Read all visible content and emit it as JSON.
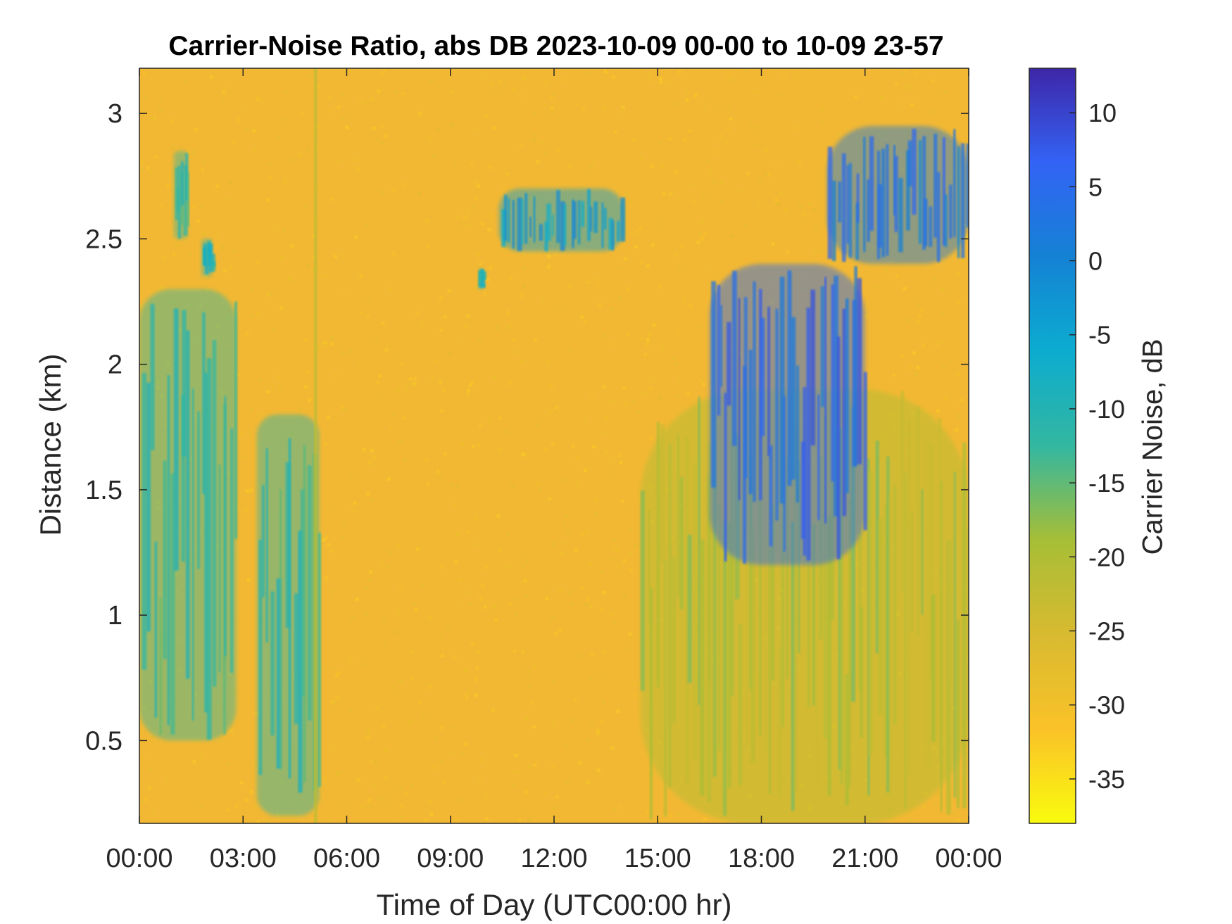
{
  "chart_data": {
    "type": "heatmap",
    "title": "Carrier-Noise Ratio, abs DB 2023-10-09 00-00 to 10-09 23-57",
    "xlabel": "Time of Day (UTC00:00 hr)",
    "ylabel": "Distance (km)",
    "colorbar_label": "Carrier Noise, dB",
    "x_ticks": [
      "00:00",
      "03:00",
      "06:00",
      "09:00",
      "12:00",
      "15:00",
      "18:00",
      "21:00",
      "00:00"
    ],
    "x_range_hours": [
      0,
      24
    ],
    "y_ticks": [
      "0.5",
      "1",
      "1.5",
      "2",
      "2.5",
      "3"
    ],
    "y_tick_values": [
      0.5,
      1,
      1.5,
      2,
      2.5,
      3
    ],
    "ylim_km": [
      0.17,
      3.18
    ],
    "colorbar_ticks": [
      "10",
      "5",
      "0",
      "-5",
      "-10",
      "-15",
      "-20",
      "-25",
      "-30",
      "-35"
    ],
    "colorbar_tick_values": [
      10,
      5,
      0,
      -5,
      -10,
      -15,
      -20,
      -25,
      -30,
      -35
    ],
    "clim_db": [
      -38,
      13
    ],
    "colormap": "parula",
    "background_value_db": -30,
    "features": [
      {
        "name": "early-morning plume",
        "t_hours": [
          0.0,
          2.8
        ],
        "distance_km": [
          0.5,
          2.3
        ],
        "value_db": -12
      },
      {
        "name": "early high streak",
        "t_hours": [
          1.0,
          1.4
        ],
        "distance_km": [
          2.5,
          2.85
        ],
        "value_db": -12
      },
      {
        "name": "early small blob",
        "t_hours": [
          1.8,
          2.1
        ],
        "distance_km": [
          2.35,
          2.5
        ],
        "value_db": -9
      },
      {
        "name": "pre-dawn descending band",
        "t_hours": [
          3.4,
          5.2
        ],
        "distance_km": [
          0.2,
          1.8
        ],
        "value_db": -11
      },
      {
        "name": "vertical instrument line",
        "t_hours": [
          5.05,
          5.15
        ],
        "distance_km": [
          0.17,
          3.18
        ],
        "value_db": -22
      },
      {
        "name": "midday elevated layer",
        "t_hours": [
          10.4,
          14.0
        ],
        "distance_km": [
          2.45,
          2.7
        ],
        "value_db": -4
      },
      {
        "name": "midday point",
        "t_hours": [
          9.8,
          9.95
        ],
        "distance_km": [
          2.3,
          2.38
        ],
        "value_db": -10
      },
      {
        "name": "afternoon boundary layer",
        "t_hours": [
          14.5,
          24.0
        ],
        "distance_km": [
          0.17,
          1.9
        ],
        "value_db": -20
      },
      {
        "name": "evening convective streaks",
        "t_hours": [
          16.5,
          21.0
        ],
        "distance_km": [
          1.2,
          2.4
        ],
        "value_db": 5
      },
      {
        "name": "evening elevated layer",
        "t_hours": [
          19.9,
          24.0
        ],
        "distance_km": [
          2.4,
          2.95
        ],
        "value_db": 2
      }
    ]
  }
}
